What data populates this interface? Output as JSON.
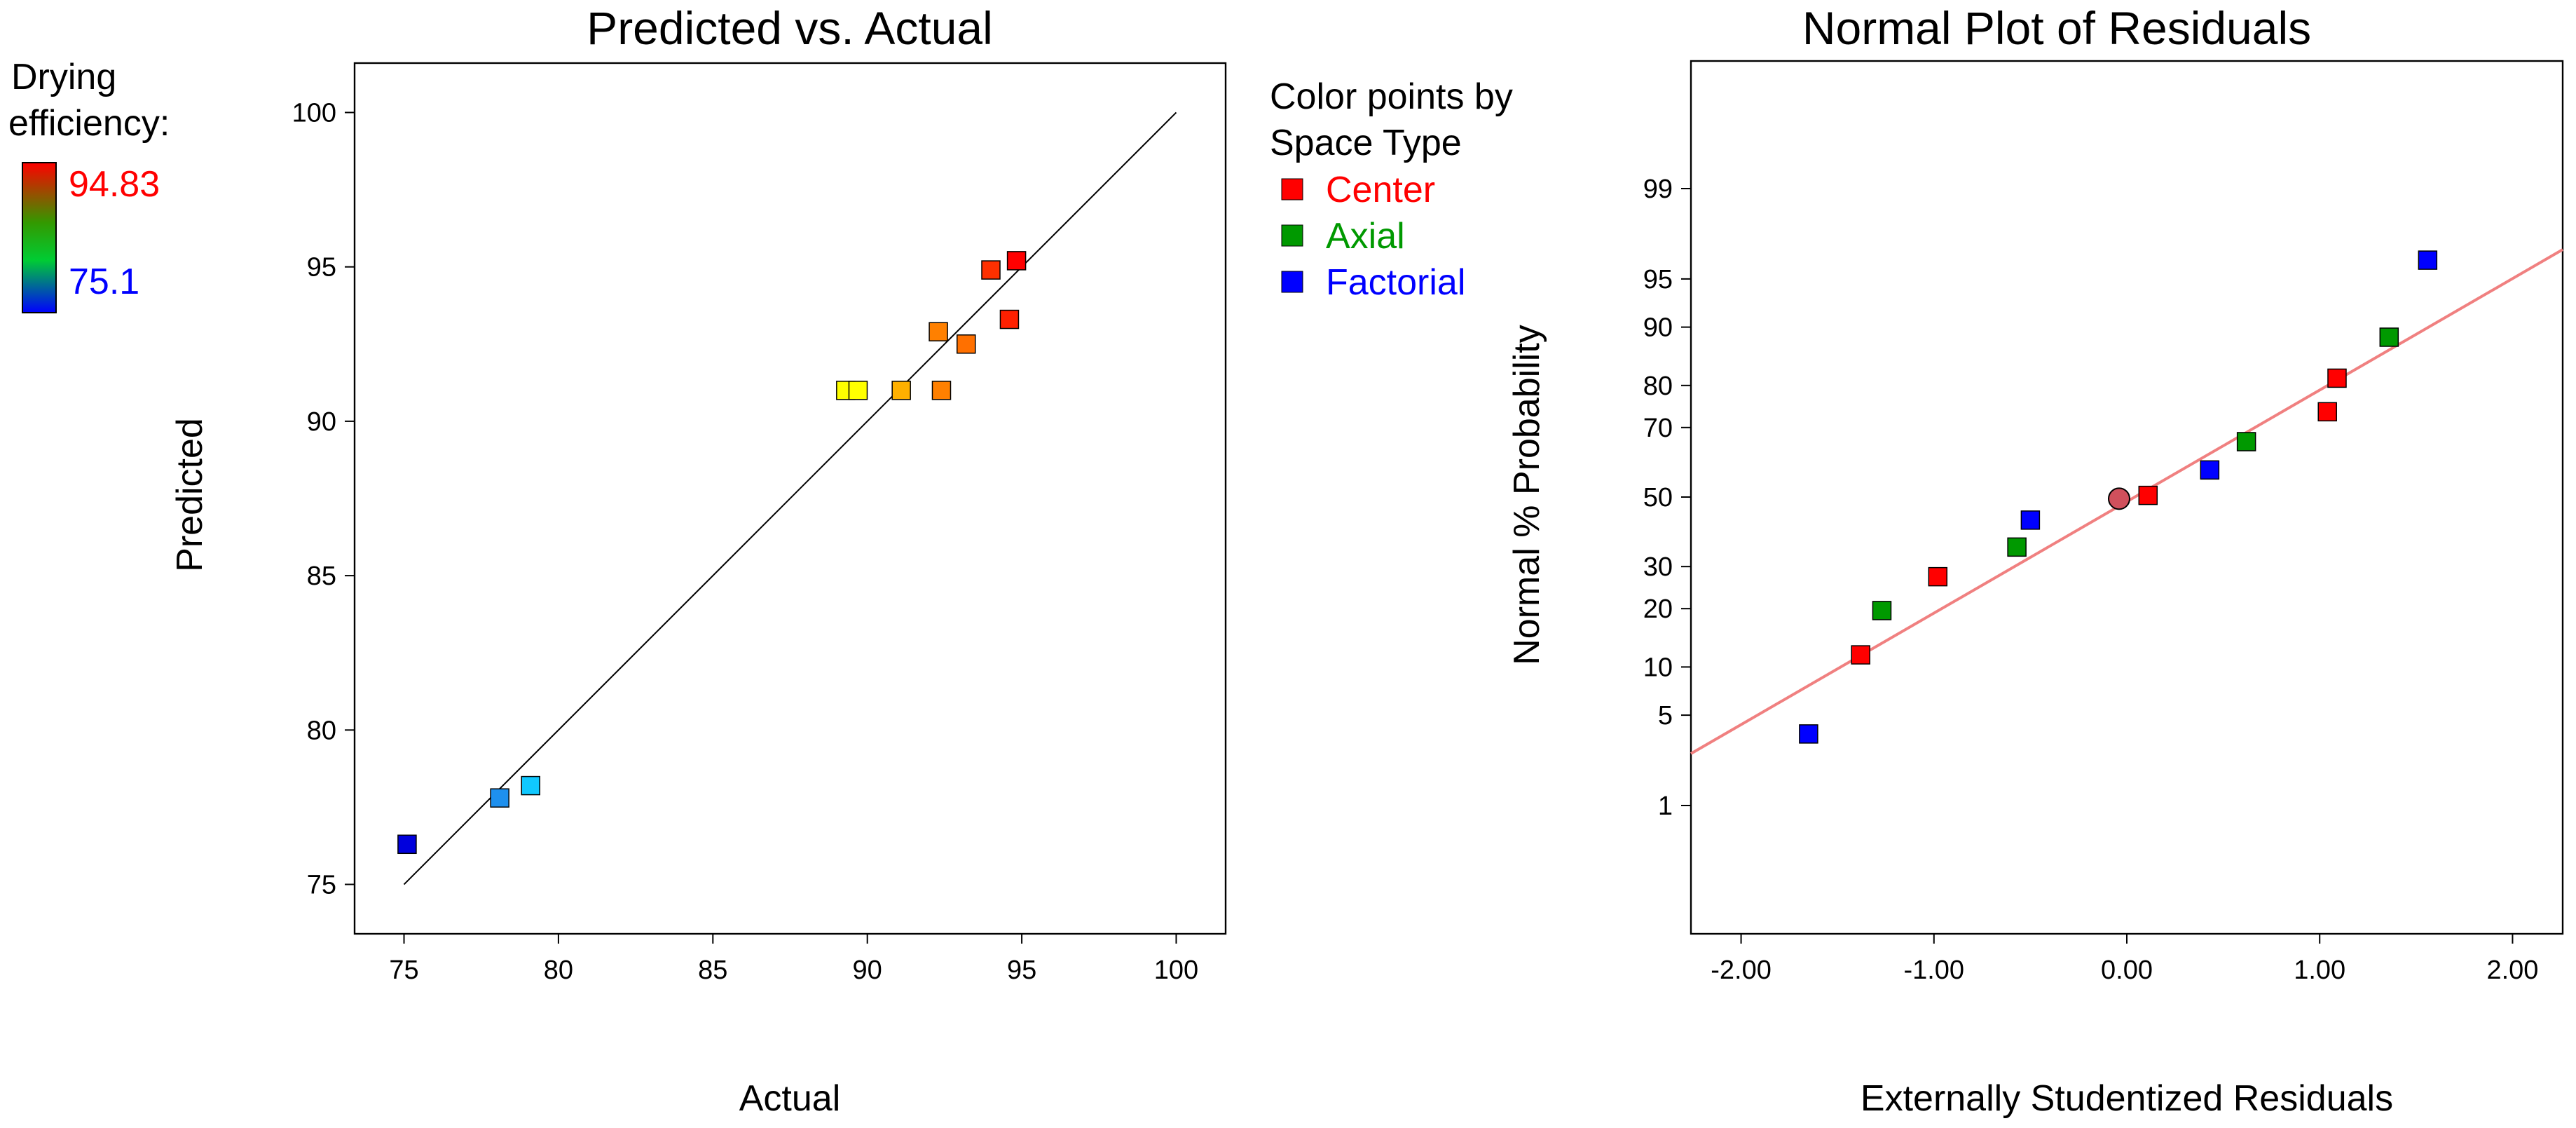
{
  "drying_legend": {
    "title_line1": "Drying",
    "title_line2": "efficiency:",
    "max_label": "94.83",
    "min_label": "75.1",
    "max_color": "#ff0000",
    "min_color": "#0000ff"
  },
  "space_type_legend": {
    "title_line1": "Color points by",
    "title_line2": "Space Type",
    "items": [
      {
        "label": "Center",
        "color": "#ff0000"
      },
      {
        "label": "Axial",
        "color": "#009900"
      },
      {
        "label": "Factorial",
        "color": "#0000ff"
      }
    ]
  },
  "chart_data": [
    {
      "type": "scatter",
      "title": "Predicted vs. Actual",
      "xlabel": "Actual",
      "ylabel": "Predicted",
      "xlim": [
        73.4,
        101.6
      ],
      "ylim": [
        73.4,
        101.6
      ],
      "xticks": [
        75,
        80,
        85,
        90,
        95,
        100
      ],
      "yticks": [
        75,
        80,
        85,
        90,
        95,
        100
      ],
      "reference_line": [
        [
          75,
          75
        ],
        [
          100,
          100
        ]
      ],
      "color_scale": {
        "min": 75.1,
        "max": 94.83
      },
      "points": [
        {
          "actual": 75.1,
          "predicted": 76.3,
          "color": "#0000dd"
        },
        {
          "actual": 78.1,
          "predicted": 77.8,
          "color": "#1e90ee"
        },
        {
          "actual": 79.1,
          "predicted": 78.2,
          "color": "#10c8ff"
        },
        {
          "actual": 89.3,
          "predicted": 91.0,
          "color": "#ffff00"
        },
        {
          "actual": 89.7,
          "predicted": 91.0,
          "color": "#ffff00"
        },
        {
          "actual": 91.1,
          "predicted": 91.0,
          "color": "#ffb000"
        },
        {
          "actual": 92.3,
          "predicted": 92.9,
          "color": "#ff8000"
        },
        {
          "actual": 92.4,
          "predicted": 91.0,
          "color": "#ff8000"
        },
        {
          "actual": 93.2,
          "predicted": 92.5,
          "color": "#ff7000"
        },
        {
          "actual": 94.0,
          "predicted": 94.9,
          "color": "#ff3000"
        },
        {
          "actual": 94.6,
          "predicted": 93.3,
          "color": "#ff2000"
        },
        {
          "actual": 94.83,
          "predicted": 95.2,
          "color": "#ff0000"
        }
      ]
    },
    {
      "type": "scatter",
      "title": "Normal Plot of Residuals",
      "xlabel": "Externally Studentized Residuals",
      "ylabel": "Normal % Probability",
      "xlim": [
        -2.26,
        2.26
      ],
      "xticks": [
        "-2.00",
        "-1.00",
        "0.00",
        "1.00",
        "2.00"
      ],
      "yticks": [
        1,
        5,
        10,
        20,
        30,
        50,
        70,
        80,
        90,
        95,
        99
      ],
      "fit_line_color": "#f08080",
      "fit_line": [
        [
          -2.26,
          2.65
        ],
        [
          2.26,
          96.9
        ]
      ],
      "points": [
        {
          "residual": -1.65,
          "probability": 3.7,
          "space_type": "Factorial"
        },
        {
          "residual": -1.38,
          "probability": 11.7,
          "space_type": "Center"
        },
        {
          "residual": -1.27,
          "probability": 19.6,
          "space_type": "Axial"
        },
        {
          "residual": -0.98,
          "probability": 27.4,
          "space_type": "Center"
        },
        {
          "residual": -0.57,
          "probability": 35.3,
          "space_type": "Axial"
        },
        {
          "residual": -0.5,
          "probability": 43.1,
          "space_type": "Factorial"
        },
        {
          "residual": -0.04,
          "probability": 49.5,
          "space_type": "Center",
          "highlight": true
        },
        {
          "residual": 0.11,
          "probability": 50.5,
          "space_type": "Center"
        },
        {
          "residual": 0.43,
          "probability": 58.1,
          "space_type": "Factorial"
        },
        {
          "residual": 0.62,
          "probability": 66.2,
          "space_type": "Axial"
        },
        {
          "residual": 1.04,
          "probability": 74.0,
          "space_type": "Center"
        },
        {
          "residual": 1.09,
          "probability": 81.5,
          "space_type": "Center"
        },
        {
          "residual": 1.36,
          "probability": 88.6,
          "space_type": "Axial"
        },
        {
          "residual": 1.56,
          "probability": 96.3,
          "space_type": "Factorial"
        }
      ]
    }
  ]
}
